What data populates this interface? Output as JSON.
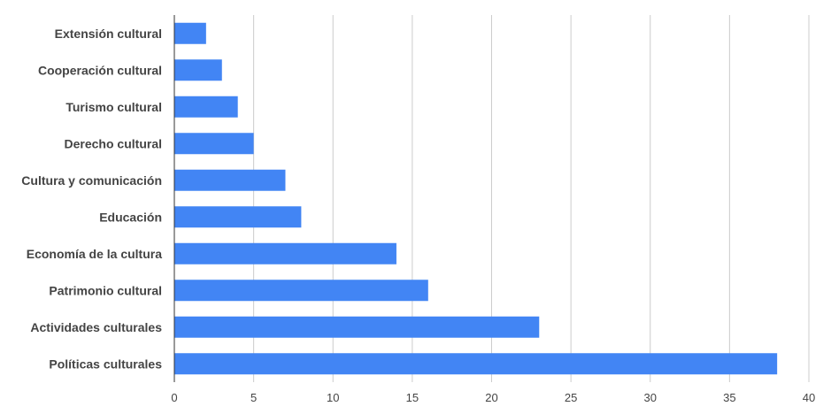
{
  "chart_data": {
    "type": "bar",
    "orientation": "horizontal",
    "categories": [
      "Extensión cultural",
      "Cooperación cultural",
      "Turismo cultural",
      "Derecho cultural",
      "Cultura y comunicación",
      "Educación",
      "Economía de la cultura",
      "Patrimonio cultural",
      "Actividades culturales",
      "Políticas culturales"
    ],
    "values": [
      2,
      3,
      4,
      5,
      7,
      8,
      14,
      16,
      23,
      38
    ],
    "xlim": [
      0,
      40
    ],
    "xticks": [
      "0",
      "5",
      "10",
      "15",
      "20",
      "25",
      "30",
      "35",
      "40"
    ],
    "title": "",
    "xlabel": "",
    "ylabel": "",
    "grid": "vertical",
    "bar_color": "#4285f4",
    "grid_color": "#cccccc",
    "axis_color": "#333333",
    "label_color": "#444444"
  }
}
